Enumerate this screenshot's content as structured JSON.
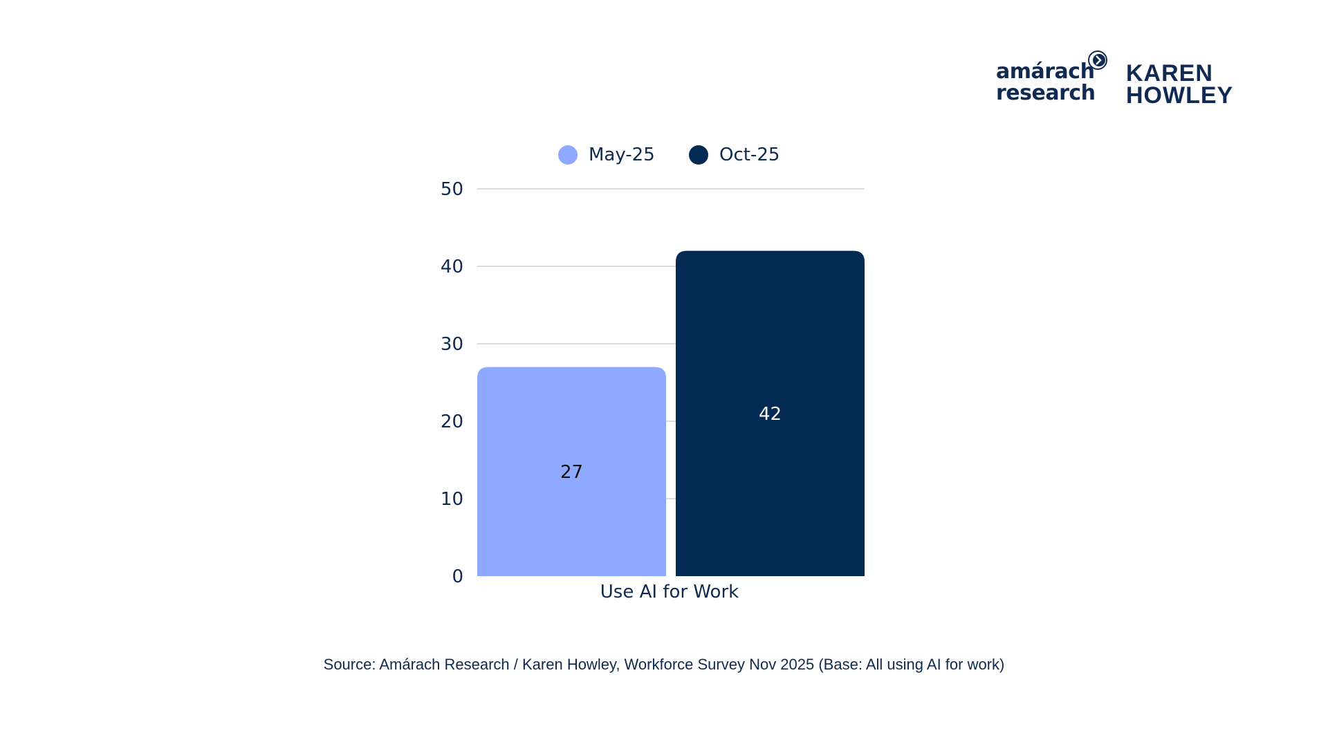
{
  "logos": {
    "amarach_line1": "amárach",
    "amarach_line2": "research",
    "karen_line1": "KAREN",
    "karen_line2": "HOWLEY"
  },
  "chart_data": {
    "type": "bar",
    "categories": [
      "Use AI for Work"
    ],
    "series": [
      {
        "name": "May-25",
        "values": [
          27
        ],
        "color": "#8ea9ff",
        "label_color": "#111111"
      },
      {
        "name": "Oct-25",
        "values": [
          42
        ],
        "color": "#022a52",
        "label_color": "#ffffff"
      }
    ],
    "title": "",
    "xlabel": "",
    "ylabel": "",
    "ylim": [
      0,
      50
    ],
    "yticks": [
      0,
      10,
      20,
      30,
      40,
      50
    ],
    "legend_position": "top-center",
    "grid": true
  },
  "colors": {
    "text": "#0f2a4f",
    "grid": "#c9d4e0"
  },
  "source": "Source: Amárach Research / Karen Howley, Workforce Survey Nov 2025 (Base: All using AI for work)"
}
